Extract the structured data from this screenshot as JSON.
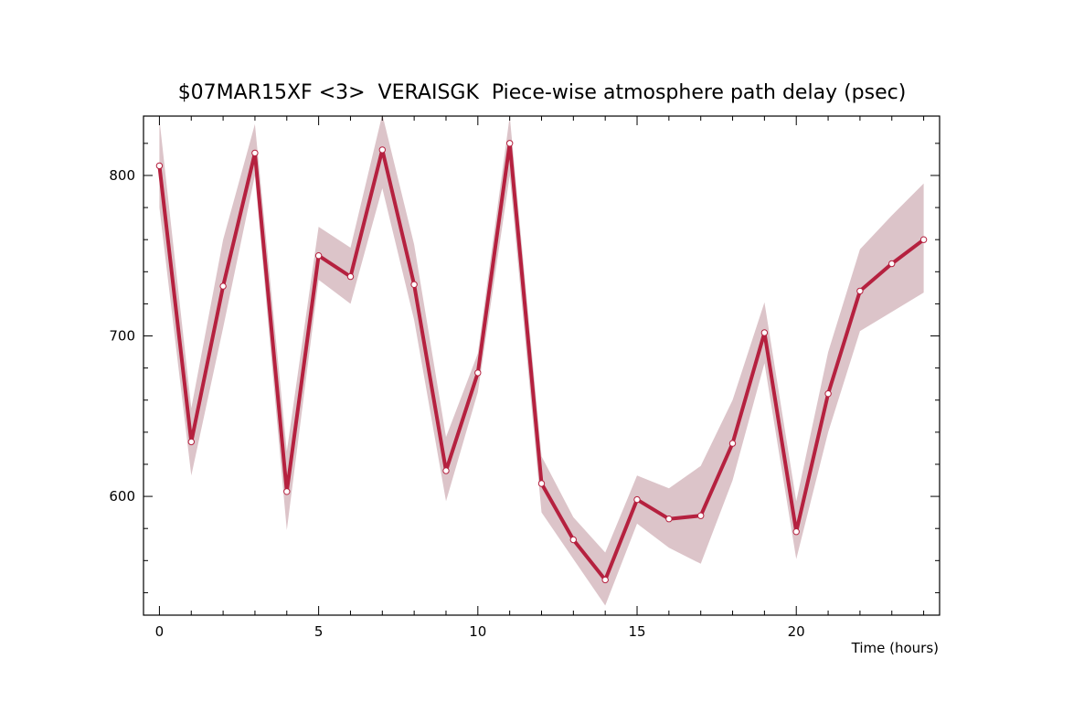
{
  "chart_data": {
    "type": "line",
    "title": "$07MAR15XF <3>  VERAISGK  Piece-wise atmosphere path delay (psec)",
    "xlabel": "Time (hours)",
    "ylabel": "",
    "xlim": [
      -0.5,
      24.5
    ],
    "ylim": [
      526,
      837
    ],
    "x_ticks": [
      0,
      5,
      10,
      15,
      20
    ],
    "x_tick_labels": [
      "0",
      "5",
      "10",
      "15",
      "20"
    ],
    "y_ticks": [
      600,
      700,
      800
    ],
    "y_tick_labels": [
      "600",
      "700",
      "800"
    ],
    "grid": false,
    "legend": "none",
    "colors": {
      "line": "#b5213f",
      "band": "#dcc4c9",
      "marker_fill": "#ffffff",
      "axes": "#000000"
    },
    "series": [
      {
        "x": [
          0,
          1,
          2,
          3,
          4,
          5,
          6,
          7,
          8,
          9,
          10,
          11,
          12,
          13,
          14,
          15,
          16,
          17,
          18,
          19,
          20,
          21,
          22,
          23,
          24
        ],
        "values": [
          806,
          634,
          731,
          814,
          603,
          750,
          737,
          816,
          732,
          616,
          677,
          820,
          608,
          573,
          548,
          598,
          586,
          588,
          633,
          702,
          578,
          664,
          728,
          745,
          760
        ],
        "upper": [
          835,
          655,
          760,
          832,
          628,
          768,
          755,
          838,
          757,
          637,
          689,
          837,
          625,
          587,
          565,
          613,
          605,
          619,
          660,
          721,
          597,
          690,
          754,
          775,
          795
        ],
        "lower": [
          780,
          613,
          705,
          800,
          579,
          735,
          720,
          792,
          710,
          597,
          665,
          800,
          590,
          561,
          532,
          583,
          568,
          558,
          610,
          683,
          561,
          640,
          703,
          715,
          727
        ]
      }
    ]
  }
}
